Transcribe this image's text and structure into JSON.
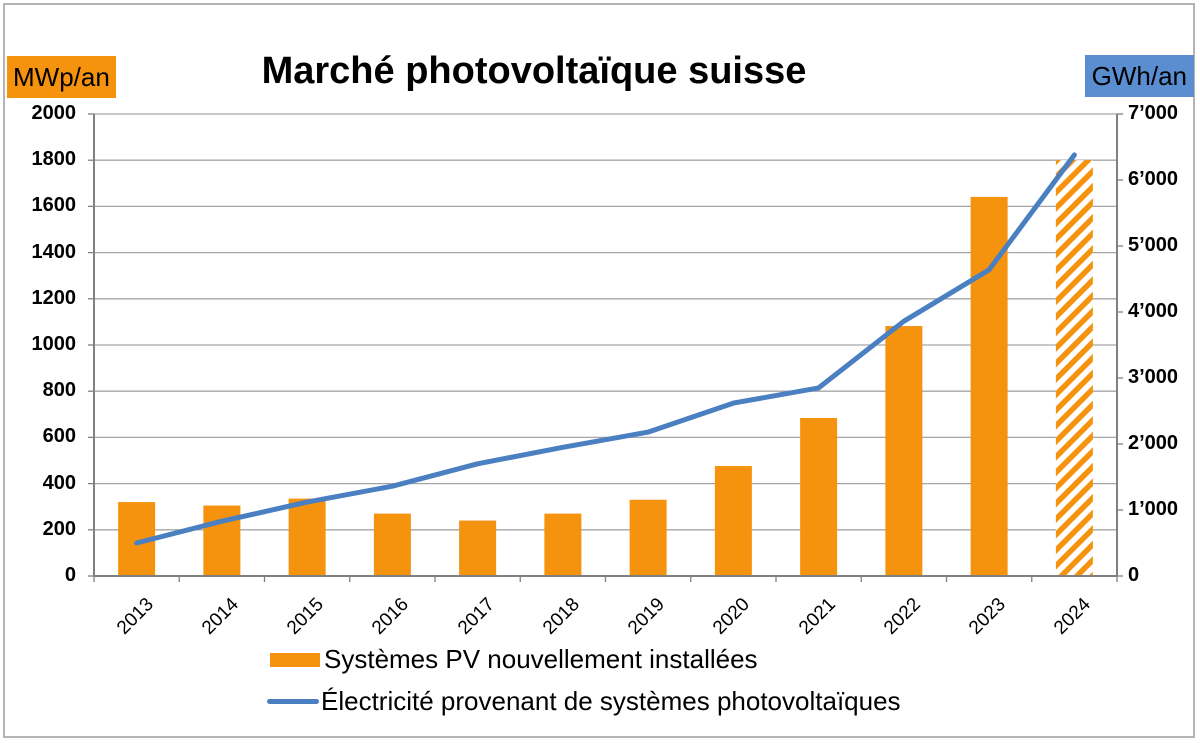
{
  "chart_data": {
    "type": "bar",
    "title": "Marché photovoltaïque suisse",
    "xlabel": "",
    "ylabel": "MWp/an",
    "y2label": "GWh/an",
    "categories": [
      "2013",
      "2014",
      "2015",
      "2016",
      "2017",
      "2018",
      "2019",
      "2020",
      "2021",
      "2022",
      "2023",
      "2024"
    ],
    "series": [
      {
        "name": "Systèmes PV nouvellement installées",
        "type": "bar",
        "axis": "left",
        "unit": "MWp/an",
        "color": "#f5920e",
        "values": [
          320,
          305,
          335,
          270,
          240,
          270,
          330,
          476,
          684,
          1082,
          1641,
          1800
        ],
        "hatched_last": true
      },
      {
        "name": "Électricité provenant de systèmes photovoltaïques",
        "type": "line",
        "axis": "right",
        "unit": "GWh/an",
        "color": "#4a7fc1",
        "values": [
          500,
          830,
          1120,
          1360,
          1700,
          1950,
          2180,
          2620,
          2850,
          3860,
          4640,
          6380
        ]
      }
    ],
    "ylim": [
      0,
      2000
    ],
    "y2lim": [
      0,
      7000
    ],
    "yticks": [
      "0",
      "200",
      "400",
      "600",
      "800",
      "1000",
      "1200",
      "1400",
      "1600",
      "1800",
      "2000"
    ],
    "y2ticks": [
      "0",
      "1’000",
      "2’000",
      "3’000",
      "4’000",
      "5’000",
      "6’000",
      "7’000"
    ],
    "grid": true,
    "legend_position": "bottom"
  },
  "header": {
    "title": "Marché photovoltaïque suisse",
    "left_unit": "MWp/an",
    "right_unit": "GWh/an"
  },
  "legend": {
    "bar_label": "Systèmes PV nouvellement installées",
    "line_label": "Électricité provenant de systèmes photovoltaïques"
  },
  "colors": {
    "bar": "#f5920e",
    "line": "#4a7fc1",
    "right_unit_bg": "#5b8ed1",
    "grid": "#a6a6a6",
    "axis": "#808080"
  }
}
